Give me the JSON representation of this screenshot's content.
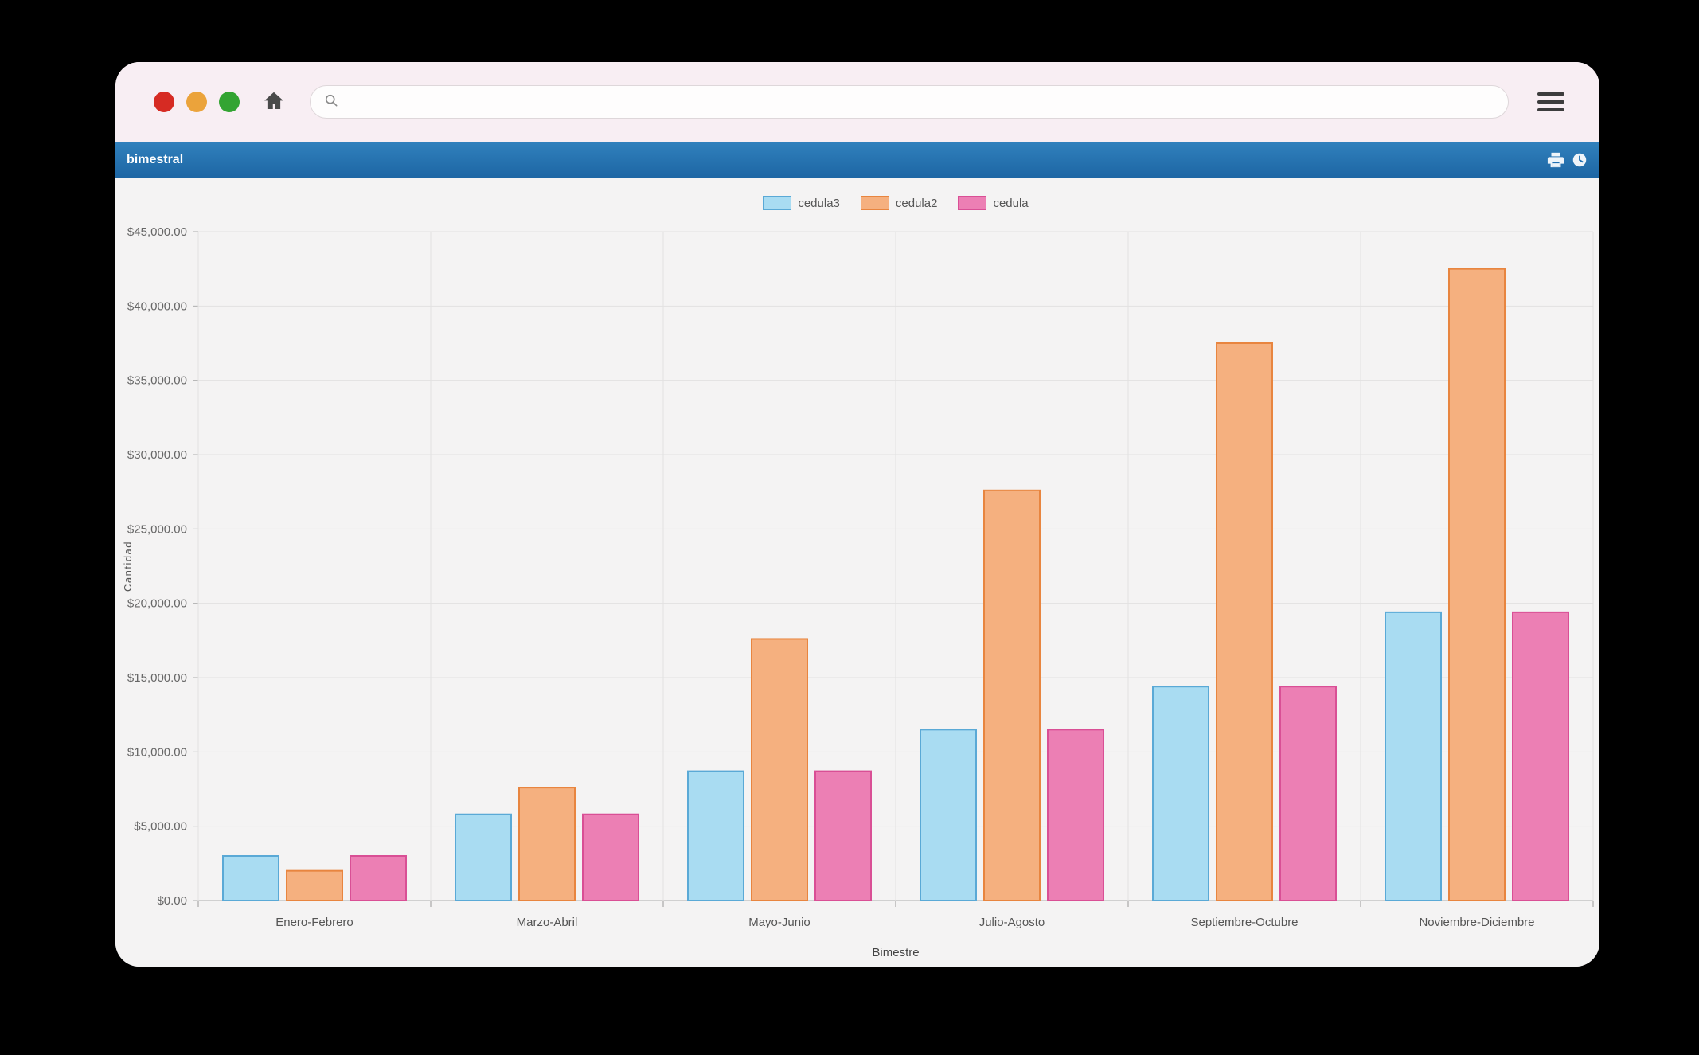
{
  "window": {
    "browser": {
      "traffic_lights": [
        "close",
        "minimize",
        "zoom"
      ],
      "home_icon": "home-icon",
      "search_icon": "search-icon",
      "menu_icon": "hamburger-menu-icon",
      "address": {
        "value": "",
        "placeholder": ""
      }
    },
    "header": {
      "title": "bimestral",
      "icons": [
        "print-icon",
        "clock-icon"
      ],
      "accent_color": "#1f6fb2"
    }
  },
  "chart_data": {
    "type": "bar",
    "title": "",
    "categories": [
      "Enero-Febrero",
      "Marzo-Abril",
      "Mayo-Junio",
      "Julio-Agosto",
      "Septiembre-Octubre",
      "Noviembre-Diciembre"
    ],
    "series": [
      {
        "name": "cedula3",
        "fill": "#a9dcf2",
        "stroke": "#5aa9d6",
        "values": [
          3000,
          5800,
          8700,
          11500,
          14400,
          19400
        ]
      },
      {
        "name": "cedula2",
        "fill": "#f5b07f",
        "stroke": "#e8853f",
        "values": [
          2000,
          7600,
          17600,
          27600,
          37500,
          42500
        ]
      },
      {
        "name": "cedula",
        "fill": "#ec7fb4",
        "stroke": "#d94f95",
        "values": [
          3000,
          5800,
          8700,
          11500,
          14400,
          19400
        ]
      }
    ],
    "xlabel": "Bimestre",
    "ylabel": "Cantidad",
    "ylim": [
      0,
      45000
    ],
    "ytick_step": 5000,
    "ytick_format": "$#,##0.00",
    "grid": true,
    "legend_position": "top"
  }
}
